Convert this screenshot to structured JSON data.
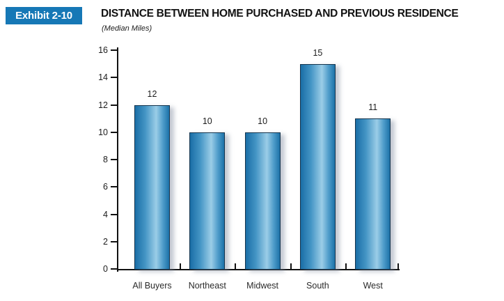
{
  "exhibit": {
    "badge_label": "Exhibit 2-10",
    "badge_color": "#1678b6"
  },
  "header": {
    "title": "DISTANCE BETWEEN HOME PURCHASED AND PREVIOUS RESIDENCE",
    "subtitle": "(Median Miles)"
  },
  "chart_data": {
    "type": "bar",
    "categories": [
      "All Buyers",
      "Northeast",
      "Midwest",
      "South",
      "West"
    ],
    "values": [
      12,
      10,
      10,
      15,
      11
    ],
    "title": "DISTANCE BETWEEN HOME PURCHASED AND PREVIOUS RESIDENCE",
    "subtitle": "(Median Miles)",
    "xlabel": "",
    "ylabel": "",
    "ylim": [
      0,
      16
    ],
    "yticks": [
      0,
      2,
      4,
      6,
      8,
      10,
      12,
      14,
      16
    ],
    "grid": false,
    "legend": "none",
    "data_labels_shown": true,
    "bar_gradient": [
      "#1a6ea6",
      "#4495c5",
      "#9bcde7",
      "#4e9cca",
      "#1d72a8"
    ],
    "bar_border_color": "#14344d",
    "axis_color": "#111111"
  }
}
